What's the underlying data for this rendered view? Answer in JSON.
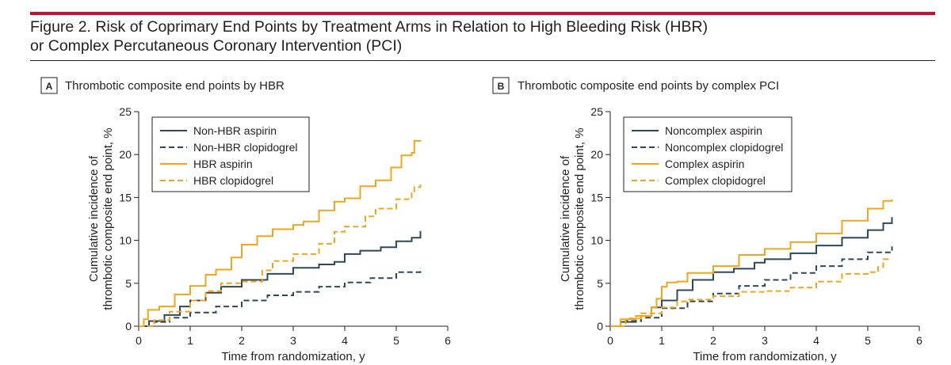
{
  "figure": {
    "title_line1": "Figure 2. Risk of Coprimary End Points by Treatment Arms in Relation to High Bleeding Risk (HBR)",
    "title_line2": "or Complex Percutaneous Coronary Intervention (PCI)"
  },
  "colors": {
    "accent_red": "#c8102e",
    "aspirin_slate": "#2f4858",
    "orange": "#f0a51e",
    "axis": "#231f20"
  },
  "chart_data": [
    {
      "type": "line",
      "panel_letter": "A",
      "title": "Thrombotic composite end points by HBR",
      "xlabel": "Time from randomization, y",
      "ylabel_lines": [
        "Cumulative incidence of",
        "thrombotic composite end point, %"
      ],
      "xlim": [
        0,
        6
      ],
      "ylim": [
        0,
        25
      ],
      "xticks": [
        0,
        1,
        2,
        3,
        4,
        5,
        6
      ],
      "yticks": [
        0,
        5,
        10,
        15,
        20,
        25
      ],
      "grid": false,
      "legend_position": "top-left",
      "series": [
        {
          "name": "Non-HBR aspirin",
          "color": "#2f4858",
          "dashed": false,
          "points": [
            [
              0,
              0
            ],
            [
              0.2,
              0.6
            ],
            [
              0.5,
              1.3
            ],
            [
              0.8,
              2.3
            ],
            [
              1.0,
              3.0
            ],
            [
              1.3,
              3.9
            ],
            [
              1.6,
              4.6
            ],
            [
              2.0,
              5.4
            ],
            [
              2.5,
              6.1
            ],
            [
              3.0,
              6.8
            ],
            [
              3.5,
              7.2
            ],
            [
              3.8,
              7.5
            ],
            [
              4.0,
              8.4
            ],
            [
              4.3,
              8.8
            ],
            [
              4.7,
              9.2
            ],
            [
              5.0,
              9.9
            ],
            [
              5.3,
              10.3
            ],
            [
              5.47,
              11.1
            ]
          ]
        },
        {
          "name": "Non-HBR clopidogrel",
          "color": "#2f4858",
          "dashed": true,
          "points": [
            [
              0,
              0
            ],
            [
              0.3,
              0.5
            ],
            [
              0.6,
              1.0
            ],
            [
              1.0,
              1.6
            ],
            [
              1.5,
              2.3
            ],
            [
              2.0,
              3.0
            ],
            [
              2.5,
              3.6
            ],
            [
              3.0,
              4.0
            ],
            [
              3.5,
              4.6
            ],
            [
              4.0,
              5.1
            ],
            [
              4.5,
              5.6
            ],
            [
              5.0,
              6.3
            ],
            [
              5.47,
              6.8
            ]
          ]
        },
        {
          "name": "HBR aspirin",
          "color": "#f0a51e",
          "dashed": false,
          "points": [
            [
              0,
              0
            ],
            [
              0.1,
              0.8
            ],
            [
              0.18,
              1.9
            ],
            [
              0.4,
              2.3
            ],
            [
              0.7,
              3.7
            ],
            [
              1.0,
              4.7
            ],
            [
              1.3,
              6.0
            ],
            [
              1.5,
              6.6
            ],
            [
              1.8,
              8.0
            ],
            [
              2.0,
              9.5
            ],
            [
              2.3,
              10.5
            ],
            [
              2.6,
              11.3
            ],
            [
              3.0,
              11.8
            ],
            [
              3.2,
              12.2
            ],
            [
              3.5,
              13.5
            ],
            [
              3.8,
              14.5
            ],
            [
              4.0,
              14.9
            ],
            [
              4.3,
              16.3
            ],
            [
              4.6,
              17.0
            ],
            [
              4.9,
              18.5
            ],
            [
              5.1,
              19.9
            ],
            [
              5.3,
              20.2
            ],
            [
              5.35,
              21.6
            ],
            [
              5.47,
              21.7
            ]
          ]
        },
        {
          "name": "HBR clopidogrel",
          "color": "#f0a51e",
          "dashed": true,
          "points": [
            [
              0,
              0
            ],
            [
              0.3,
              0.7
            ],
            [
              0.6,
              1.7
            ],
            [
              1.0,
              3.0
            ],
            [
              1.3,
              4.1
            ],
            [
              1.6,
              5.0
            ],
            [
              2.0,
              5.2
            ],
            [
              2.4,
              6.5
            ],
            [
              2.6,
              7.6
            ],
            [
              3.0,
              8.4
            ],
            [
              3.5,
              9.6
            ],
            [
              3.8,
              11.0
            ],
            [
              4.0,
              11.6
            ],
            [
              4.4,
              12.8
            ],
            [
              4.6,
              13.7
            ],
            [
              5.0,
              14.8
            ],
            [
              5.3,
              15.5
            ],
            [
              5.35,
              16.2
            ],
            [
              5.47,
              16.5
            ]
          ]
        }
      ]
    },
    {
      "type": "line",
      "panel_letter": "B",
      "title": "Thrombotic composite end points by complex PCI",
      "xlabel": "Time from randomization, y",
      "ylabel_lines": [
        "Cumulative incidence of",
        "thrombotic composite end point, %"
      ],
      "xlim": [
        0,
        6
      ],
      "ylim": [
        0,
        25
      ],
      "xticks": [
        0,
        1,
        2,
        3,
        4,
        5,
        6
      ],
      "yticks": [
        0,
        5,
        10,
        15,
        20,
        25
      ],
      "grid": false,
      "legend_position": "top-left",
      "series": [
        {
          "name": "Noncomplex aspirin",
          "color": "#2f4858",
          "dashed": false,
          "points": [
            [
              0,
              0
            ],
            [
              0.2,
              0.5
            ],
            [
              0.5,
              1.2
            ],
            [
              0.8,
              2.2
            ],
            [
              1.0,
              3.0
            ],
            [
              1.3,
              4.2
            ],
            [
              1.6,
              5.4
            ],
            [
              2.0,
              6.3
            ],
            [
              2.4,
              6.7
            ],
            [
              2.8,
              7.4
            ],
            [
              3.0,
              7.8
            ],
            [
              3.5,
              8.5
            ],
            [
              4.0,
              9.4
            ],
            [
              4.5,
              10.3
            ],
            [
              5.0,
              11.2
            ],
            [
              5.3,
              12.0
            ],
            [
              5.47,
              12.7
            ]
          ]
        },
        {
          "name": "Noncomplex clopidogrel",
          "color": "#2f4858",
          "dashed": true,
          "points": [
            [
              0,
              0
            ],
            [
              0.3,
              0.6
            ],
            [
              0.6,
              1.0
            ],
            [
              1.0,
              2.1
            ],
            [
              1.5,
              2.9
            ],
            [
              2.0,
              3.8
            ],
            [
              2.5,
              4.7
            ],
            [
              3.0,
              5.4
            ],
            [
              3.5,
              6.2
            ],
            [
              4.0,
              7.0
            ],
            [
              4.5,
              7.8
            ],
            [
              5.0,
              8.6
            ],
            [
              5.47,
              9.3
            ]
          ]
        },
        {
          "name": "Complex aspirin",
          "color": "#f0a51e",
          "dashed": false,
          "points": [
            [
              0,
              0
            ],
            [
              0.2,
              0.8
            ],
            [
              0.5,
              1.2
            ],
            [
              0.8,
              2.2
            ],
            [
              0.9,
              3.2
            ],
            [
              1.0,
              4.6
            ],
            [
              1.1,
              5.1
            ],
            [
              1.3,
              5.2
            ],
            [
              1.5,
              6.2
            ],
            [
              2.0,
              7.0
            ],
            [
              2.5,
              8.3
            ],
            [
              3.0,
              9.0
            ],
            [
              3.5,
              9.8
            ],
            [
              4.0,
              10.8
            ],
            [
              4.5,
              12.3
            ],
            [
              5.0,
              13.7
            ],
            [
              5.3,
              14.6
            ],
            [
              5.47,
              14.8
            ]
          ]
        },
        {
          "name": "Complex clopidogrel",
          "color": "#f0a51e",
          "dashed": true,
          "points": [
            [
              0,
              0
            ],
            [
              0.3,
              0.9
            ],
            [
              0.6,
              1.5
            ],
            [
              1.0,
              2.2
            ],
            [
              1.3,
              2.9
            ],
            [
              1.5,
              3.1
            ],
            [
              2.0,
              3.5
            ],
            [
              2.5,
              4.0
            ],
            [
              3.0,
              4.1
            ],
            [
              3.5,
              4.5
            ],
            [
              4.0,
              5.2
            ],
            [
              4.5,
              6.1
            ],
            [
              5.0,
              6.3
            ],
            [
              5.2,
              6.9
            ],
            [
              5.3,
              7.8
            ],
            [
              5.47,
              7.8
            ]
          ]
        }
      ]
    }
  ]
}
